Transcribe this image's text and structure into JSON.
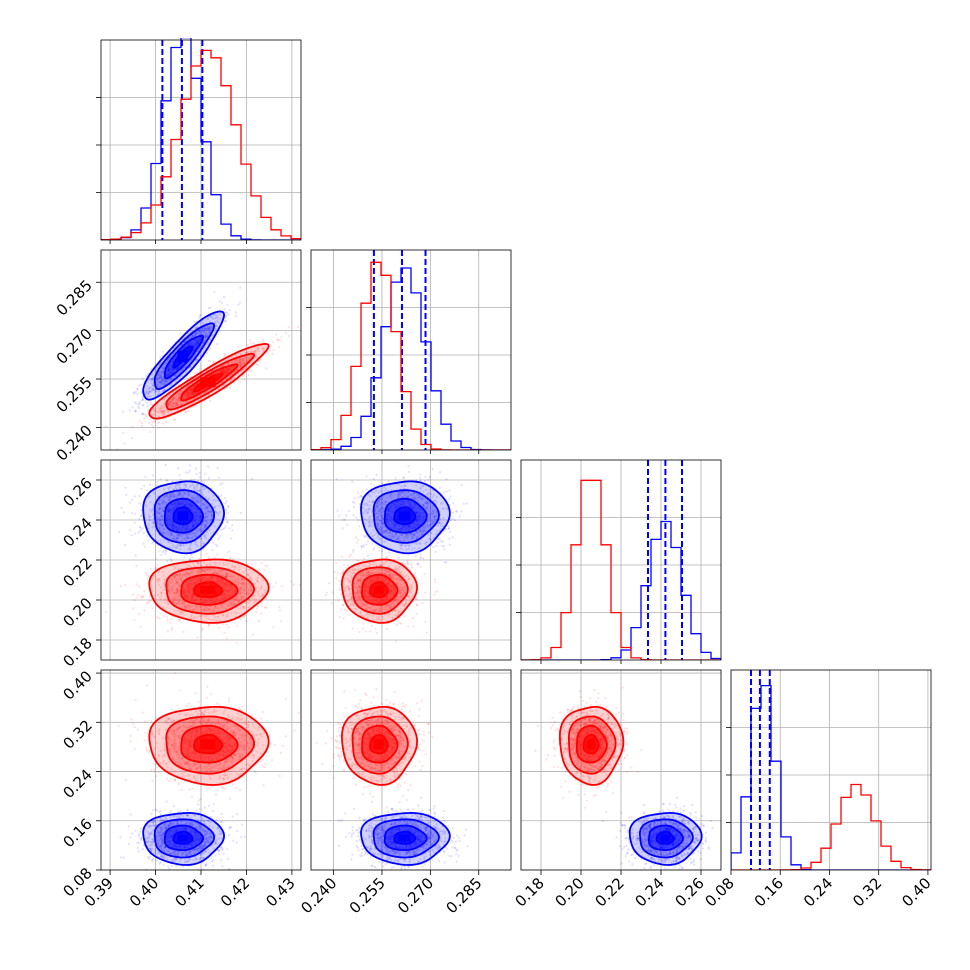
{
  "chart_data": {
    "type": "corner",
    "title": "",
    "colors": {
      "blue": "#0000ff",
      "red": "#ff0000"
    },
    "grid": true,
    "parameters": [
      {
        "index": 0,
        "range": [
          0.388,
          0.432
        ],
        "ticks": [
          "0.39",
          "0.40",
          "0.41",
          "0.42",
          "0.43"
        ]
      },
      {
        "index": 1,
        "range": [
          0.233,
          0.295
        ],
        "ticks": [
          "0.240",
          "0.255",
          "0.270",
          "0.285"
        ]
      },
      {
        "index": 2,
        "range": [
          0.17,
          0.27
        ],
        "ticks": [
          "0.18",
          "0.20",
          "0.22",
          "0.24",
          "0.26"
        ]
      },
      {
        "index": 3,
        "range": [
          0.08,
          0.405
        ],
        "ticks": [
          "0.08",
          "0.16",
          "0.24",
          "0.32",
          "0.40"
        ]
      }
    ],
    "series": [
      {
        "color": "blue",
        "means": [
          0.406,
          0.262,
          0.242,
          0.132
        ],
        "sds": [
          0.0042,
          0.0065,
          0.0085,
          0.02
        ],
        "quantiles": [
          [
            0.4015,
            0.4058,
            0.4103
          ],
          [
            0.2525,
            0.2612,
            0.2685
          ],
          [
            0.2335,
            0.2422,
            0.2505
          ],
          [
            0.1125,
            0.127,
            0.143
          ]
        ]
      },
      {
        "color": "red",
        "means": [
          0.4115,
          0.254,
          0.205,
          0.284
        ],
        "sds": [
          0.0062,
          0.0055,
          0.0075,
          0.03
        ]
      }
    ],
    "correlations": [
      {
        "pair": [
          0,
          1
        ],
        "blue": 0.88,
        "red": 0.92
      }
    ],
    "histogram_peaks": [
      {
        "index": 0,
        "blue": 1.08,
        "red": 1.0
      },
      {
        "index": 1,
        "red": 1.0,
        "blue": 0.96
      },
      {
        "index": 2,
        "red": 1.0,
        "blue": 0.73
      },
      {
        "index": 3,
        "blue": 1.0,
        "red": 0.45
      }
    ]
  }
}
